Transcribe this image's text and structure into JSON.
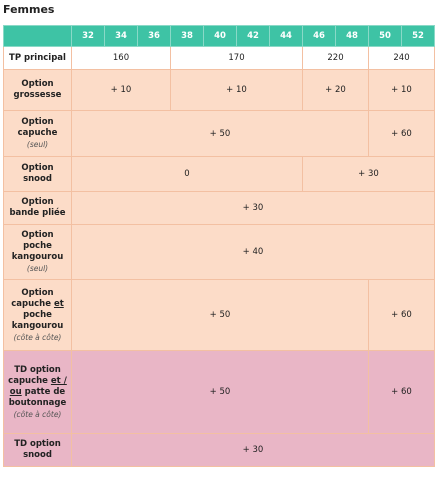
{
  "header": {
    "title": "Femmes"
  },
  "table": {
    "header_color": "#3ec3a5",
    "sizes": [
      "32",
      "34",
      "36",
      "38",
      "40",
      "42",
      "44",
      "46",
      "48",
      "50",
      "52"
    ],
    "rows": [
      {
        "color": "#ffffff",
        "label": [
          {
            "text": "TP principal"
          }
        ],
        "cells": [
          {
            "text": "160",
            "span": 3
          },
          {
            "text": "170",
            "span": 4
          },
          {
            "text": "220",
            "span": 2
          },
          {
            "text": "240",
            "span": 2
          }
        ]
      },
      {
        "color": "#fcdcc8",
        "label": [
          {
            "text": "Option grossesse"
          }
        ],
        "cells": [
          {
            "text": "+ 10",
            "span": 3
          },
          {
            "text": "+ 10",
            "span": 4
          },
          {
            "text": "+ 20",
            "span": 2
          },
          {
            "text": "+ 10",
            "span": 2
          }
        ]
      },
      {
        "color": "#fcdcc8",
        "label": [
          {
            "text": "Option capuche"
          },
          {
            "text": "(seul)",
            "italic": true
          }
        ],
        "cells": [
          {
            "text": "+ 50",
            "span": 9
          },
          {
            "text": "+ 60",
            "span": 2
          }
        ]
      },
      {
        "color": "#fcdcc8",
        "label": [
          {
            "text": "Option snood"
          }
        ],
        "cells": [
          {
            "text": "0",
            "span": 7
          },
          {
            "text": "+ 30",
            "span": 4
          }
        ]
      },
      {
        "color": "#fcdcc8",
        "label": [
          {
            "text": "Option bande pliée"
          }
        ],
        "cells": [
          {
            "text": "+ 30",
            "span": 11
          }
        ]
      },
      {
        "color": "#fcdcc8",
        "label": [
          {
            "text": "Option poche kangourou"
          },
          {
            "text": "(seul)",
            "italic": true
          }
        ],
        "cells": [
          {
            "text": "+ 40",
            "span": 11
          }
        ]
      },
      {
        "color": "#fcdcc8",
        "label": [
          {
            "text": "Option capuche"
          },
          {
            "text": "et",
            "underline": true
          },
          {
            "text": "poche kangourou"
          },
          {
            "text": "(côte à côte)",
            "italic": true
          }
        ],
        "cells": [
          {
            "text": "+ 50",
            "span": 9
          },
          {
            "text": "+ 60",
            "span": 2
          }
        ]
      },
      {
        "color": "#e9b6c6",
        "label": [
          {
            "text": "TD option capuche"
          },
          {
            "text": "et / ou",
            "underline": true
          },
          {
            "text": "patte de boutonnage"
          },
          {
            "text": "(côte à côte)",
            "italic": true
          }
        ],
        "cells": [
          {
            "text": "+ 50",
            "span": 9
          },
          {
            "text": "+ 60",
            "span": 2
          }
        ]
      },
      {
        "color": "#e9b6c6",
        "label": [
          {
            "text": "TD option snood"
          }
        ],
        "cells": [
          {
            "text": "+ 30",
            "span": 11
          }
        ]
      }
    ]
  }
}
